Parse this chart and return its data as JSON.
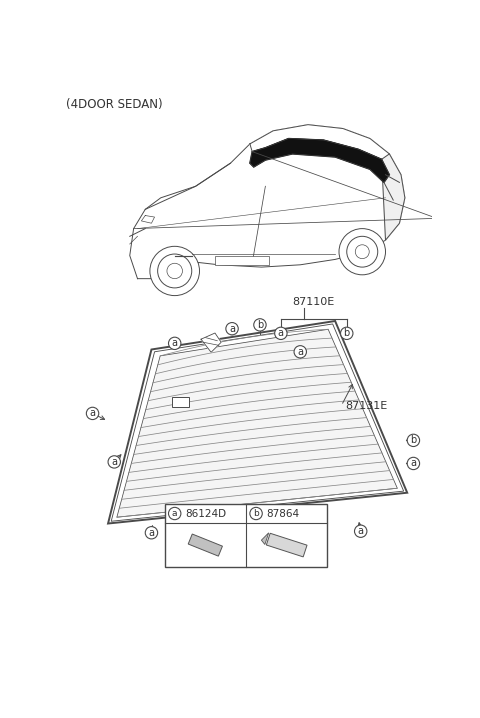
{
  "title": "(4DOOR SEDAN)",
  "part_label_87110E": "87110E",
  "part_label_87131E": "87131E",
  "legend_a_code": "86124D",
  "legend_b_code": "87864",
  "bg_color": "#ffffff",
  "line_color": "#4a4a4a",
  "text_color": "#333333",
  "callout_circle_color": "#ffffff",
  "callout_circle_edgecolor": "#4a4a4a",
  "defroster_color": "#888888",
  "moulding_color": "#cccccc"
}
